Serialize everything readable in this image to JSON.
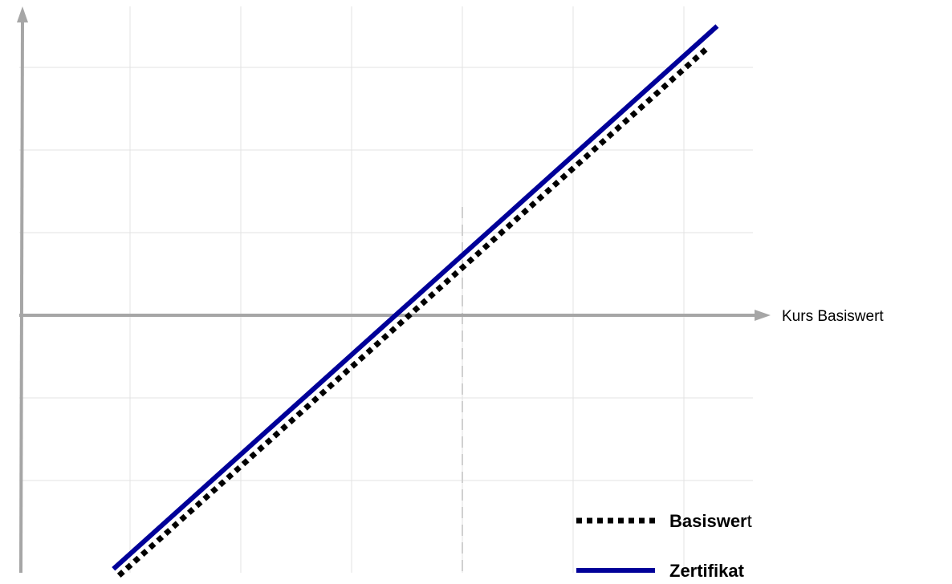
{
  "chart_data": {
    "type": "line",
    "title": "",
    "xlabel": "Kurs Basiswert",
    "ylabel": "",
    "grid": true,
    "legend": "bottom-right",
    "xlim": [
      0,
      6
    ],
    "ylim": [
      -3,
      3
    ],
    "strike_x": 4,
    "series": [
      {
        "name": "Basiswert",
        "name_bold": "Basiswer",
        "name_rest": "t",
        "style": "dotted",
        "color": "#000000",
        "x": [
          0.9,
          6.2
        ],
        "y": [
          -3.15,
          3.22
        ]
      },
      {
        "name": "Zertifikat",
        "style": "solid",
        "color": "#000099",
        "x": [
          0.85,
          6.3
        ],
        "y": [
          -3.07,
          3.5
        ]
      }
    ]
  }
}
